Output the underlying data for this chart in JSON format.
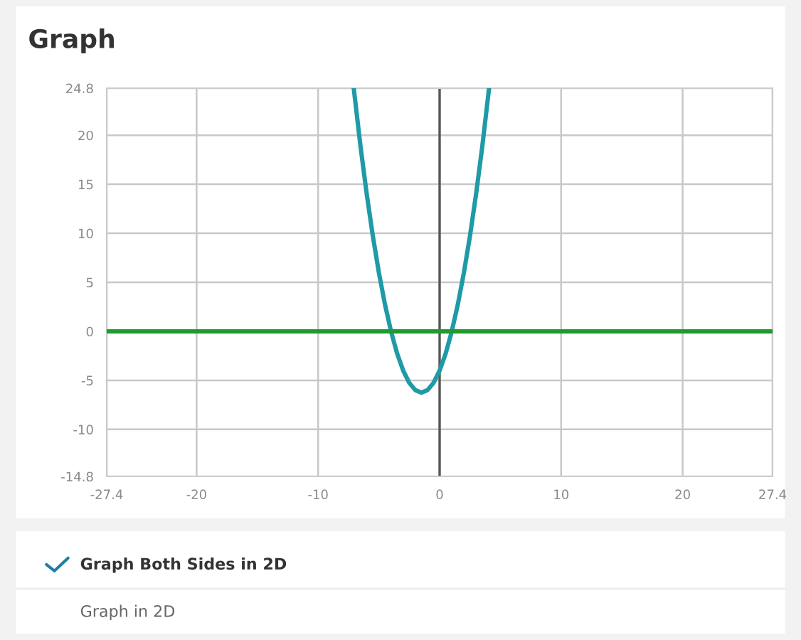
{
  "chart_data": {
    "type": "line",
    "title": "Graph",
    "series": [
      {
        "color": "#1f9aa6",
        "x": [
          -7.07,
          -6.5,
          -6,
          -5.5,
          -5,
          -4.5,
          -4,
          -3.5,
          -3,
          -2.5,
          -2,
          -1.5,
          -1,
          -0.5,
          0,
          0.5,
          1,
          1.5,
          2,
          2.5,
          3,
          3.5,
          4.07
        ],
        "values": [
          24.8,
          18.75,
          14,
          9.75,
          6,
          2.75,
          0,
          -2.25,
          -4,
          -5.25,
          -6,
          -6.25,
          -6,
          -5.25,
          -4,
          -2.25,
          0,
          2.75,
          6,
          9.75,
          14,
          18.75,
          24.8
        ]
      },
      {
        "color": "#1e9a2e",
        "x": [
          -27.4,
          27.4
        ],
        "values": [
          0,
          0
        ]
      }
    ],
    "xlim": [
      -27.4,
      27.4
    ],
    "xticks": [
      -27.4,
      -20,
      -10,
      0,
      10,
      20,
      27.4
    ],
    "ylim": [
      -14.8,
      24.8
    ],
    "yticks": [
      -14.8,
      -10,
      -5,
      0,
      5,
      10,
      15,
      20,
      24.8
    ],
    "ref_lines": [
      {
        "axis": "x",
        "value": 0,
        "color": "#555555"
      }
    ],
    "grid": true,
    "legend": false,
    "marker": "none",
    "line_style": "solid",
    "annotations": [
      "Graph Both Sides in 2D",
      "Graph in 2D"
    ]
  }
}
